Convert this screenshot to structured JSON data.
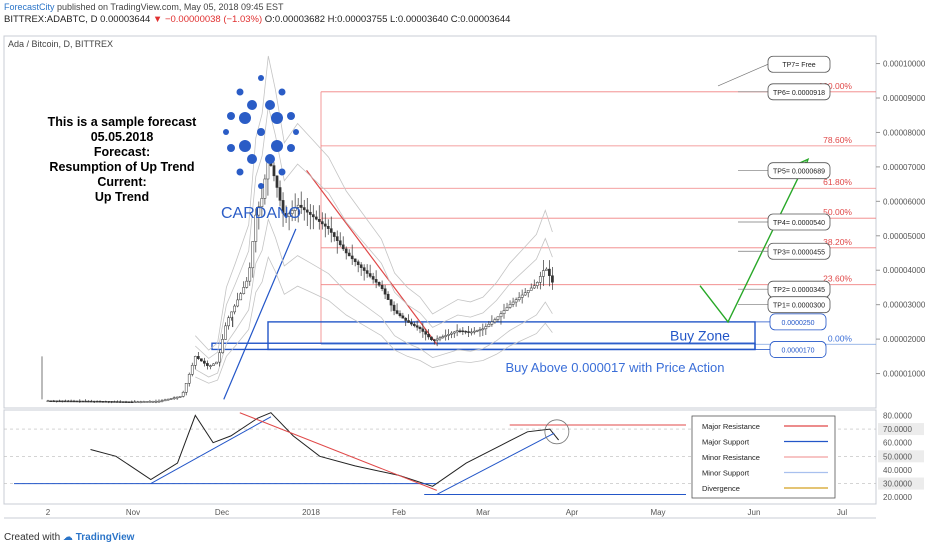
{
  "header": {
    "brand": "ForecastCity",
    "published": " published on TradingView.com, May 05, 2018 09:45 EST",
    "symbol": "BITTREX:ADABTC, D",
    "last": "0.00003644",
    "change": "▼ −0.00000038 (−1.03%)",
    "ohlc": "O:0.00003682 H:0.00003755 L:0.00003640 C:0.00003644"
  },
  "chart_title": "Ada / Bitcoin, D, BITTREX",
  "footer": {
    "created_with": "Created with",
    "brand": "TradingView"
  },
  "forecast_text": [
    "This is a sample forecast",
    "05.05.2018",
    "Forecast:",
    "Resumption of Up Trend",
    "Current:",
    "Up Trend"
  ],
  "logo_text": "CARDANO",
  "buy_zone_label": "Buy Zone",
  "buy_text": "Buy Above 0.000017 with Price Action",
  "colors": {
    "blue": "#2356c8",
    "red": "#e04848",
    "green": "#28a828",
    "up": "#2c2c2c",
    "down": "#2c2c2c"
  },
  "chart_data": {
    "type": "candlestick",
    "x_ticks": [
      "2",
      "Nov",
      "Dec",
      "2018",
      "Feb",
      "Mar",
      "Apr",
      "May",
      "Jun",
      "Jul"
    ],
    "y_ticks": [
      "0.00010000",
      "0.00009000",
      "0.00008000",
      "0.00007000",
      "0.00006000",
      "0.00005000",
      "0.00004000",
      "0.00003000",
      "0.00002000",
      "0.00001000"
    ],
    "ylim": [
      0,
      0.000108
    ],
    "fib_levels": [
      {
        "label": "100.00%",
        "value": 9.18e-05
      },
      {
        "label": "78.60%",
        "value": 7.61e-05
      },
      {
        "label": "61.80%",
        "value": 6.38e-05
      },
      {
        "label": "50.00%",
        "value": 5.51e-05
      },
      {
        "label": "38.20%",
        "value": 4.65e-05
      },
      {
        "label": "23.60%",
        "value": 3.58e-05
      },
      {
        "label": "0.00%",
        "value": 1.85e-05
      }
    ],
    "targets": [
      {
        "label": "TP7= Free",
        "value": 9.98e-05
      },
      {
        "label": "TP6= 0.0000918",
        "value": 9.18e-05
      },
      {
        "label": "TP5= 0.0000689",
        "value": 6.89e-05
      },
      {
        "label": "TP4= 0.0000540",
        "value": 5.4e-05
      },
      {
        "label": "TP3= 0.0000455",
        "value": 4.55e-05
      },
      {
        "label": "TP2= 0.0000345",
        "value": 3.45e-05
      },
      {
        "label": "TP1= 0.0000300",
        "value": 3e-05
      }
    ],
    "zone_labels": [
      {
        "label": "0.0000250",
        "value": 2.5e-05
      },
      {
        "label": "0.0000170",
        "value": 1.7e-05
      }
    ],
    "price_series": [
      {
        "m": 0.0,
        "v": 2.1e-06
      },
      {
        "m": 0.5,
        "v": 2e-06
      },
      {
        "m": 1.0,
        "v": 1.8e-06
      },
      {
        "m": 1.3,
        "v": 2e-06
      },
      {
        "m": 1.55,
        "v": 3.5e-06
      },
      {
        "m": 1.7,
        "v": 1.5e-05
      },
      {
        "m": 1.85,
        "v": 1.2e-05
      },
      {
        "m": 1.95,
        "v": 1.35e-05
      },
      {
        "m": 2.05,
        "v": 2.5e-05
      },
      {
        "m": 2.15,
        "v": 3e-05
      },
      {
        "m": 2.3,
        "v": 3.8e-05
      },
      {
        "m": 2.38,
        "v": 5.6e-05
      },
      {
        "m": 2.45,
        "v": 6.1e-05
      },
      {
        "m": 2.52,
        "v": 7.3e-05
      },
      {
        "m": 2.6,
        "v": 6.6e-05
      },
      {
        "m": 2.7,
        "v": 5.5e-05
      },
      {
        "m": 2.85,
        "v": 5.9e-05
      },
      {
        "m": 3.0,
        "v": 5.6e-05
      },
      {
        "m": 3.2,
        "v": 5.2e-05
      },
      {
        "m": 3.4,
        "v": 4.5e-05
      },
      {
        "m": 3.6,
        "v": 4e-05
      },
      {
        "m": 3.8,
        "v": 3.5e-05
      },
      {
        "m": 3.95,
        "v": 2.8e-05
      },
      {
        "m": 4.1,
        "v": 2.5e-05
      },
      {
        "m": 4.25,
        "v": 2.3e-05
      },
      {
        "m": 4.4,
        "v": 1.95e-05
      },
      {
        "m": 4.55,
        "v": 2.1e-05
      },
      {
        "m": 4.7,
        "v": 2.25e-05
      },
      {
        "m": 4.85,
        "v": 2.2e-05
      },
      {
        "m": 5.0,
        "v": 2.3e-05
      },
      {
        "m": 5.15,
        "v": 2.6e-05
      },
      {
        "m": 5.3,
        "v": 3e-05
      },
      {
        "m": 5.45,
        "v": 3.3e-05
      },
      {
        "m": 5.6,
        "v": 3.6e-05
      },
      {
        "m": 5.7,
        "v": 4.1e-05
      },
      {
        "m": 5.78,
        "v": 3.65e-05
      }
    ],
    "oscillator": {
      "y_ticks": [
        "80.0000",
        "70.0000",
        "60.0000",
        "50.0000",
        "40.0000",
        "30.0000",
        "20.0000"
      ],
      "ylim": [
        15,
        84
      ],
      "highlight_ticks": [
        "70.0000",
        "50.0000",
        "30.0000"
      ],
      "series": [
        {
          "m": 0.5,
          "v": 55
        },
        {
          "m": 0.8,
          "v": 50
        },
        {
          "m": 1.2,
          "v": 33
        },
        {
          "m": 1.5,
          "v": 45
        },
        {
          "m": 1.7,
          "v": 80
        },
        {
          "m": 1.9,
          "v": 60
        },
        {
          "m": 2.1,
          "v": 65
        },
        {
          "m": 2.4,
          "v": 78
        },
        {
          "m": 2.55,
          "v": 82
        },
        {
          "m": 2.8,
          "v": 65
        },
        {
          "m": 3.1,
          "v": 50
        },
        {
          "m": 3.5,
          "v": 43
        },
        {
          "m": 4.0,
          "v": 36
        },
        {
          "m": 4.4,
          "v": 28
        },
        {
          "m": 4.8,
          "v": 45
        },
        {
          "m": 5.2,
          "v": 58
        },
        {
          "m": 5.5,
          "v": 68
        },
        {
          "m": 5.75,
          "v": 70
        },
        {
          "m": 5.85,
          "v": 62
        }
      ],
      "legend": [
        {
          "label": "Major Resistance",
          "color": "#e04848"
        },
        {
          "label": "Major Support",
          "color": "#2356c8"
        },
        {
          "label": "Minor Resistance",
          "color": "#f2a0a0"
        },
        {
          "label": "Minor Support",
          "color": "#a8c0ee"
        },
        {
          "label": "Divergence",
          "color": "#d4a020"
        }
      ]
    }
  }
}
